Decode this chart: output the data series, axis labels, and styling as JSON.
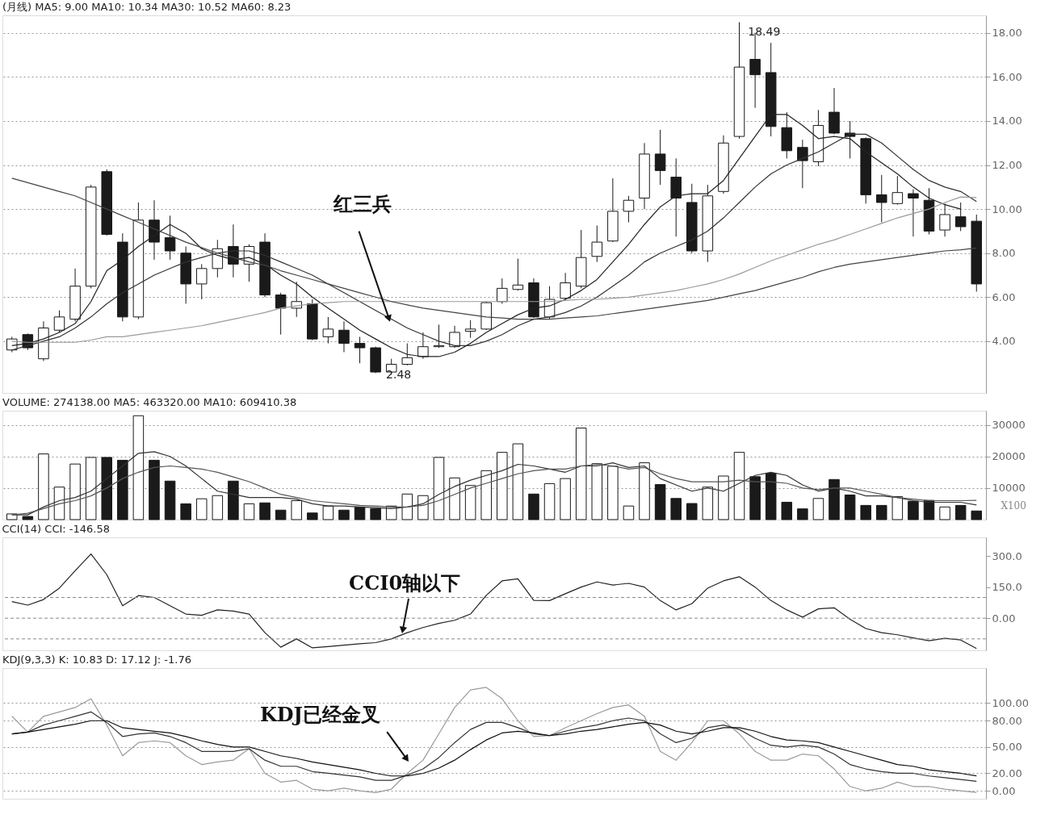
{
  "chart_data": [
    {
      "type": "candlestick",
      "title": "(月线) MA5: 9.00 MA10: 10.34 MA30: 10.52 MA60: 8.23",
      "tick_labels": "y",
      "grid": "y",
      "categories": [
        null,
        null,
        null,
        null,
        null,
        null,
        null,
        null,
        null,
        null,
        null,
        null,
        null,
        null,
        null,
        null,
        null,
        null,
        null,
        null,
        null,
        null,
        null,
        null,
        null,
        null,
        null,
        null,
        null,
        null,
        null,
        null,
        null,
        null,
        null,
        null,
        null,
        null,
        null,
        null,
        null,
        null,
        null,
        null,
        null,
        null,
        null,
        null,
        null,
        null,
        null,
        null,
        null,
        null,
        null,
        null,
        null,
        null,
        null,
        null,
        null,
        null
      ],
      "ohlc": [
        [
          3.6,
          4.2,
          3.5,
          4.1
        ],
        [
          4.3,
          4.35,
          3.6,
          3.7
        ],
        [
          3.2,
          4.9,
          3.1,
          4.6
        ],
        [
          4.5,
          5.4,
          4.4,
          5.1
        ],
        [
          5.0,
          7.3,
          4.9,
          6.5
        ],
        [
          6.5,
          11.1,
          6.4,
          11.0
        ],
        [
          11.7,
          11.8,
          8.8,
          8.85
        ],
        [
          8.5,
          8.9,
          4.9,
          5.1
        ],
        [
          5.1,
          10.3,
          5.0,
          9.5
        ],
        [
          9.5,
          10.4,
          7.7,
          8.5
        ],
        [
          8.7,
          9.7,
          7.7,
          8.1
        ],
        [
          8.0,
          8.3,
          5.7,
          6.6
        ],
        [
          6.6,
          7.5,
          5.9,
          7.3
        ],
        [
          7.3,
          8.6,
          6.9,
          8.2
        ],
        [
          8.3,
          9.3,
          6.9,
          7.5
        ],
        [
          7.5,
          8.4,
          6.7,
          8.3
        ],
        [
          8.5,
          8.9,
          6.0,
          6.1
        ],
        [
          6.1,
          6.2,
          4.3,
          5.5
        ],
        [
          5.5,
          6.7,
          5.1,
          5.8
        ],
        [
          5.7,
          5.9,
          4.05,
          4.1
        ],
        [
          4.2,
          5.1,
          3.9,
          4.55
        ],
        [
          4.5,
          4.9,
          3.5,
          3.9
        ],
        [
          3.9,
          4.2,
          3.0,
          3.7
        ],
        [
          3.7,
          3.75,
          2.55,
          2.6
        ],
        [
          2.6,
          3.2,
          2.48,
          2.95
        ],
        [
          2.95,
          3.9,
          2.9,
          3.25
        ],
        [
          3.3,
          4.4,
          3.2,
          3.75
        ],
        [
          3.75,
          4.75,
          3.7,
          3.8
        ],
        [
          3.75,
          4.7,
          3.7,
          4.4
        ],
        [
          4.45,
          4.95,
          4.15,
          4.55
        ],
        [
          4.55,
          5.8,
          4.5,
          5.75
        ],
        [
          5.8,
          6.85,
          5.7,
          6.4
        ],
        [
          6.35,
          7.75,
          6.3,
          6.55
        ],
        [
          6.65,
          6.85,
          5.05,
          5.1
        ],
        [
          5.1,
          6.5,
          5.0,
          5.9
        ],
        [
          5.95,
          7.1,
          5.85,
          6.65
        ],
        [
          6.5,
          9.05,
          6.4,
          7.8
        ],
        [
          7.85,
          9.25,
          7.6,
          8.5
        ],
        [
          8.55,
          11.4,
          8.5,
          9.9
        ],
        [
          9.9,
          10.6,
          9.4,
          10.4
        ],
        [
          10.5,
          13.0,
          10.0,
          12.5
        ],
        [
          12.5,
          13.6,
          11.1,
          11.75
        ],
        [
          11.45,
          12.3,
          8.75,
          10.5
        ],
        [
          10.3,
          11.15,
          8.0,
          8.1
        ],
        [
          8.1,
          11.1,
          7.6,
          10.6
        ],
        [
          10.8,
          13.35,
          10.7,
          13.0
        ],
        [
          13.3,
          18.49,
          13.2,
          16.45
        ],
        [
          16.8,
          18.0,
          14.6,
          16.1
        ],
        [
          16.2,
          17.55,
          13.3,
          13.75
        ],
        [
          13.7,
          14.4,
          12.3,
          12.65
        ],
        [
          12.8,
          13.15,
          10.95,
          12.2
        ],
        [
          12.15,
          14.5,
          11.95,
          13.8
        ],
        [
          14.4,
          15.5,
          13.4,
          13.45
        ],
        [
          13.45,
          14.0,
          12.3,
          13.3
        ],
        [
          13.2,
          13.25,
          10.25,
          10.65
        ],
        [
          10.65,
          11.55,
          9.4,
          10.3
        ],
        [
          10.25,
          11.5,
          10.2,
          10.75
        ],
        [
          10.7,
          10.9,
          8.75,
          10.5
        ],
        [
          10.4,
          10.95,
          8.85,
          9.0
        ],
        [
          9.05,
          10.25,
          8.75,
          9.75
        ],
        [
          9.65,
          10.3,
          9.0,
          9.2
        ],
        [
          9.45,
          9.75,
          6.25,
          6.6
        ]
      ],
      "colors": [
        "#ffffff",
        "#1a1a1a",
        "#ffffff",
        "#ffffff",
        "#ffffff",
        "#ffffff",
        "#1a1a1a",
        "#1a1a1a",
        "#ffffff",
        "#1a1a1a",
        "#1a1a1a",
        "#1a1a1a",
        "#ffffff",
        "#ffffff",
        "#1a1a1a",
        "#ffffff",
        "#1a1a1a",
        "#1a1a1a",
        "#ffffff",
        "#1a1a1a",
        "#ffffff",
        "#1a1a1a",
        "#1a1a1a",
        "#1a1a1a",
        "#ffffff",
        "#ffffff",
        "#ffffff",
        "#ffffff",
        "#ffffff",
        "#ffffff",
        "#ffffff",
        "#ffffff",
        "#ffffff",
        "#1a1a1a",
        "#ffffff",
        "#ffffff",
        "#ffffff",
        "#ffffff",
        "#ffffff",
        "#ffffff",
        "#ffffff",
        "#1a1a1a",
        "#1a1a1a",
        "#1a1a1a",
        "#ffffff",
        "#ffffff",
        "#ffffff",
        "#1a1a1a",
        "#1a1a1a",
        "#1a1a1a",
        "#1a1a1a",
        "#ffffff",
        "#1a1a1a",
        "#1a1a1a",
        "#1a1a1a",
        "#1a1a1a",
        "#ffffff",
        "#1a1a1a",
        "#1a1a1a",
        "#ffffff",
        "#1a1a1a",
        "#1a1a1a"
      ],
      "series": [
        {
          "type": "line",
          "color": "#222222",
          "values": [
            3.8,
            3.9,
            4.1,
            4.4,
            4.8,
            5.8,
            7.2,
            7.7,
            8.3,
            8.8,
            9.3,
            8.9,
            8.2,
            7.9,
            7.7,
            7.8,
            7.5,
            7.0,
            6.6,
            6.0,
            5.5,
            5.0,
            4.5,
            4.1,
            3.7,
            3.4,
            3.3,
            3.3,
            3.5,
            3.9,
            4.4,
            4.8,
            5.2,
            5.5,
            5.6,
            5.9,
            6.3,
            6.8,
            7.6,
            8.4,
            9.3,
            10.1,
            10.6,
            10.7,
            10.7,
            11.3,
            12.3,
            13.3,
            14.3,
            14.3,
            13.8,
            13.2,
            13.3,
            13.2,
            12.6,
            12.1,
            11.6,
            11.0,
            10.5,
            10.2,
            10.0,
            null
          ]
        },
        {
          "type": "line",
          "color": "#333333",
          "values": [
            3.6,
            3.8,
            4.0,
            4.2,
            4.6,
            5.1,
            5.7,
            6.2,
            6.6,
            7.0,
            7.3,
            7.6,
            7.8,
            8.0,
            8.1,
            8.1,
            7.9,
            7.6,
            7.3,
            7.0,
            6.6,
            6.2,
            5.8,
            5.4,
            5.0,
            4.6,
            4.3,
            4.0,
            3.8,
            3.8,
            4.0,
            4.3,
            4.7,
            5.0,
            5.1,
            5.3,
            5.6,
            6.0,
            6.5,
            7.0,
            7.6,
            8.0,
            8.3,
            8.6,
            9.0,
            9.6,
            10.3,
            11.0,
            11.6,
            12.0,
            12.3,
            12.6,
            13.0,
            13.4,
            13.4,
            13.0,
            12.4,
            11.8,
            11.3,
            11.0,
            10.8,
            10.34
          ]
        },
        {
          "type": "line",
          "color": "#9a9a9a",
          "values": [
            4.0,
            3.95,
            3.95,
            3.95,
            3.95,
            4.05,
            4.2,
            4.2,
            4.3,
            4.4,
            4.5,
            4.6,
            4.7,
            4.85,
            5.0,
            5.15,
            5.3,
            5.5,
            5.6,
            5.7,
            5.75,
            5.8,
            5.8,
            5.8,
            5.8,
            5.8,
            5.8,
            5.8,
            5.8,
            5.8,
            5.8,
            5.8,
            5.8,
            5.8,
            5.8,
            5.85,
            5.9,
            5.9,
            5.95,
            6.0,
            6.1,
            6.2,
            6.3,
            6.45,
            6.6,
            6.8,
            7.05,
            7.35,
            7.65,
            7.9,
            8.15,
            8.4,
            8.6,
            8.85,
            9.1,
            9.35,
            9.6,
            9.8,
            10.0,
            10.3,
            10.55,
            10.52
          ]
        },
        {
          "type": "line",
          "color": "#444444",
          "values": [
            11.4,
            11.2,
            11.0,
            10.8,
            10.6,
            10.3,
            10.0,
            9.7,
            9.4,
            9.1,
            8.8,
            8.5,
            8.25,
            8.0,
            7.8,
            7.6,
            7.45,
            7.2,
            7.0,
            6.8,
            6.6,
            6.4,
            6.2,
            6.0,
            5.8,
            5.65,
            5.5,
            5.4,
            5.3,
            5.2,
            5.1,
            5.05,
            5.0,
            5.0,
            5.0,
            5.05,
            5.1,
            5.15,
            5.25,
            5.35,
            5.45,
            5.55,
            5.65,
            5.75,
            5.85,
            6.0,
            6.15,
            6.3,
            6.5,
            6.7,
            6.9,
            7.15,
            7.35,
            7.5,
            7.6,
            7.7,
            7.8,
            7.9,
            8.0,
            8.1,
            8.15,
            8.23
          ]
        }
      ],
      "ylim": [
        1.65,
        18.8
      ],
      "yticks": [
        {
          "value": 4,
          "label": "4.00"
        },
        {
          "value": 6,
          "label": "6.00"
        },
        {
          "value": 8,
          "label": "8.00"
        },
        {
          "value": 10,
          "label": "10.00"
        },
        {
          "value": 12,
          "label": "12.00"
        },
        {
          "value": 14,
          "label": "14.00"
        },
        {
          "value": 16,
          "label": "16.00"
        },
        {
          "value": 18,
          "label": "18.00"
        }
      ],
      "annotations": [
        "红三兵",
        "18.49",
        "2.48"
      ]
    },
    {
      "type": "bar",
      "title": "VOLUME: 274138.00 MA5: 463320.00 MA10: 609410.38",
      "tick_labels": "y",
      "grid": "y",
      "categories": [
        null,
        null,
        null,
        null,
        null,
        null,
        null,
        null,
        null,
        null,
        null,
        null,
        null,
        null,
        null,
        null,
        null,
        null,
        null,
        null,
        null,
        null,
        null,
        null,
        null,
        null,
        null,
        null,
        null,
        null,
        null,
        null,
        null,
        null,
        null,
        null,
        null,
        null,
        null,
        null,
        null,
        null,
        null,
        null,
        null,
        null,
        null,
        null,
        null,
        null,
        null,
        null,
        null,
        null,
        null,
        null,
        null,
        null,
        null,
        null,
        null,
        null
      ],
      "values": [
        1800,
        1000,
        20800,
        10300,
        17600,
        19700,
        19700,
        18800,
        32900,
        18800,
        12200,
        5000,
        6600,
        7600,
        12200,
        5000,
        5300,
        3000,
        6000,
        2100,
        4300,
        3000,
        4000,
        3500,
        4300,
        8100,
        7600,
        19700,
        13200,
        10800,
        15500,
        21300,
        24000,
        8100,
        11400,
        13000,
        29000,
        17700,
        16900,
        4300,
        18000,
        11100,
        6700,
        5100,
        10300,
        13800,
        21300,
        13600,
        14700,
        5500,
        3400,
        6700,
        12700,
        7800,
        4500,
        4500,
        7300,
        5800,
        6100,
        4000,
        4500,
        2741
      ],
      "colors": [
        "#ffffff",
        "#1a1a1a",
        "#ffffff",
        "#ffffff",
        "#ffffff",
        "#ffffff",
        "#1a1a1a",
        "#1a1a1a",
        "#ffffff",
        "#1a1a1a",
        "#1a1a1a",
        "#1a1a1a",
        "#ffffff",
        "#ffffff",
        "#1a1a1a",
        "#ffffff",
        "#1a1a1a",
        "#1a1a1a",
        "#ffffff",
        "#1a1a1a",
        "#ffffff",
        "#1a1a1a",
        "#1a1a1a",
        "#1a1a1a",
        "#ffffff",
        "#ffffff",
        "#ffffff",
        "#ffffff",
        "#ffffff",
        "#ffffff",
        "#ffffff",
        "#ffffff",
        "#ffffff",
        "#1a1a1a",
        "#ffffff",
        "#ffffff",
        "#ffffff",
        "#ffffff",
        "#ffffff",
        "#ffffff",
        "#ffffff",
        "#1a1a1a",
        "#1a1a1a",
        "#1a1a1a",
        "#ffffff",
        "#ffffff",
        "#ffffff",
        "#1a1a1a",
        "#1a1a1a",
        "#1a1a1a",
        "#1a1a1a",
        "#ffffff",
        "#1a1a1a",
        "#1a1a1a",
        "#1a1a1a",
        "#1a1a1a",
        "#ffffff",
        "#1a1a1a",
        "#1a1a1a",
        "#ffffff",
        "#1a1a1a",
        "#1a1a1a"
      ],
      "series": [
        {
          "type": "line",
          "color": "#333333",
          "values": [
            1500,
            1500,
            4000,
            6000,
            7000,
            9000,
            13000,
            17000,
            21000,
            21500,
            20000,
            17000,
            13000,
            9000,
            8000,
            7000,
            7000,
            7000,
            6500,
            5000,
            4300,
            4300,
            4000,
            3800,
            3500,
            4000,
            5000,
            8000,
            10500,
            12500,
            14000,
            15500,
            17500,
            17000,
            16000,
            15000,
            17000,
            17000,
            18000,
            16500,
            17000,
            13000,
            11000,
            9000,
            10000,
            9000,
            11500,
            14000,
            15000,
            14000,
            11000,
            9000,
            10000,
            9000,
            7500,
            7500,
            7000,
            6000,
            5500,
            5500,
            5500,
            4633
          ]
        },
        {
          "type": "line",
          "color": "#555555",
          "values": [
            1500,
            2000,
            3500,
            5000,
            6000,
            7500,
            10000,
            13000,
            15000,
            16500,
            17000,
            16500,
            16000,
            15000,
            13500,
            12000,
            10000,
            8000,
            7000,
            6000,
            5500,
            5000,
            4500,
            4300,
            4000,
            4000,
            4500,
            6000,
            8000,
            10000,
            11500,
            13000,
            14500,
            15500,
            16000,
            16000,
            17000,
            17500,
            17000,
            16000,
            16500,
            14500,
            13000,
            12000,
            12000,
            12000,
            12500,
            12000,
            12000,
            11500,
            10000,
            9500,
            10000,
            10000,
            9000,
            8000,
            7000,
            6500,
            6000,
            6000,
            6000,
            6094
          ]
        }
      ],
      "ylim": [
        0,
        34500
      ],
      "yticks": [
        10000,
        20000,
        30000
      ],
      "annotations": [
        "X100"
      ]
    },
    {
      "type": "line",
      "title": "CCI(14) CCI: -146.58",
      "tick_labels": "y",
      "color": "#222222",
      "categories": [
        null,
        null,
        null,
        null,
        null,
        null,
        null,
        null,
        null,
        null,
        null,
        null,
        null,
        null,
        null,
        null,
        null,
        null,
        null,
        null,
        null,
        null,
        null,
        null,
        null,
        null,
        null,
        null,
        null,
        null,
        null,
        null,
        null,
        null,
        null,
        null,
        null,
        null,
        null,
        null,
        null,
        null,
        null,
        null,
        null,
        null,
        null,
        null,
        null,
        null,
        null,
        null,
        null,
        null,
        null,
        null,
        null,
        null,
        null,
        null,
        null,
        null
      ],
      "values": [
        80,
        63,
        90,
        145,
        229,
        310,
        210,
        60,
        109,
        100,
        60,
        20,
        14,
        40,
        34,
        20,
        -70,
        -140,
        -100,
        -143,
        -137,
        -130,
        -123,
        -118,
        -100,
        -70,
        -45,
        -25,
        -10,
        20,
        110,
        180,
        190,
        86,
        85,
        118,
        150,
        175,
        160,
        168,
        150,
        85,
        40,
        70,
        145,
        180,
        200,
        150,
        85,
        40,
        5,
        45,
        50,
        -5,
        -50,
        -70,
        -80,
        -95,
        -109,
        -97,
        -105,
        -146.58
      ],
      "ylim": [
        -155,
        390
      ],
      "yticks": [
        {
          "value": 0,
          "label": "0.00"
        },
        {
          "value": 150,
          "label": "150.0"
        },
        {
          "value": 300,
          "label": "300.0"
        }
      ],
      "ref_lines": [
        {
          "axis": "y",
          "value": 100,
          "color": "#888888",
          "line_style": "dashed"
        },
        {
          "axis": "y",
          "value": 0,
          "color": "#888888",
          "line_style": "dashed"
        },
        {
          "axis": "y",
          "value": -100,
          "color": "#888888",
          "line_style": "dashed"
        }
      ],
      "annotations": [
        "CCI0轴以下"
      ]
    },
    {
      "type": "line",
      "title": "KDJ(9,3,3) K: 10.83 D: 17.12 J: -1.76",
      "tick_labels": "y",
      "grid": "y",
      "categories": [
        null,
        null,
        null,
        null,
        null,
        null,
        null,
        null,
        null,
        null,
        null,
        null,
        null,
        null,
        null,
        null,
        null,
        null,
        null,
        null,
        null,
        null,
        null,
        null,
        null,
        null,
        null,
        null,
        null,
        null,
        null,
        null,
        null,
        null,
        null,
        null,
        null,
        null,
        null,
        null,
        null,
        null,
        null,
        null,
        null,
        null,
        null,
        null,
        null,
        null,
        null,
        null,
        null,
        null,
        null,
        null,
        null,
        null,
        null,
        null,
        null,
        null
      ],
      "series": [
        {
          "type": "line",
          "color": "#9a9a9a",
          "values": [
            85,
            67,
            85,
            90,
            95,
            105,
            75,
            40,
            55,
            57,
            55,
            40,
            30,
            33,
            35,
            48,
            20,
            10,
            12,
            2,
            0,
            3,
            0,
            -2,
            2,
            20,
            35,
            65,
            95,
            115,
            118,
            105,
            80,
            62,
            63,
            72,
            80,
            88,
            95,
            98,
            85,
            45,
            35,
            55,
            80,
            80,
            65,
            45,
            35,
            35,
            42,
            40,
            25,
            5,
            0,
            3,
            10,
            5,
            5,
            2,
            0,
            -1.76
          ]
        },
        {
          "type": "line",
          "color": "#333333",
          "values": [
            65,
            67,
            75,
            80,
            85,
            90,
            78,
            62,
            65,
            66,
            62,
            55,
            45,
            45,
            45,
            48,
            35,
            28,
            28,
            22,
            20,
            18,
            16,
            12,
            12,
            18,
            25,
            38,
            55,
            70,
            78,
            78,
            72,
            65,
            63,
            68,
            72,
            75,
            80,
            83,
            80,
            65,
            55,
            60,
            72,
            75,
            70,
            60,
            52,
            50,
            52,
            50,
            42,
            30,
            25,
            22,
            20,
            20,
            17,
            15,
            13,
            10.83
          ]
        },
        {
          "type": "line",
          "color": "#111111",
          "values": [
            65,
            67,
            70,
            73,
            76,
            80,
            80,
            72,
            70,
            68,
            66,
            62,
            57,
            53,
            50,
            50,
            45,
            40,
            37,
            33,
            30,
            27,
            24,
            20,
            17,
            17,
            20,
            26,
            35,
            47,
            58,
            66,
            68,
            66,
            63,
            65,
            68,
            70,
            73,
            76,
            78,
            75,
            68,
            65,
            68,
            72,
            72,
            68,
            62,
            58,
            57,
            55,
            50,
            45,
            40,
            35,
            30,
            28,
            24,
            22,
            20,
            17.12
          ]
        }
      ],
      "ylim": [
        -9,
        140
      ],
      "yticks": [
        {
          "value": 0,
          "label": "0.00"
        },
        {
          "value": 20,
          "label": "20.00"
        },
        {
          "value": 50,
          "label": "50.00"
        },
        {
          "value": 80,
          "label": "80.00"
        },
        {
          "value": 100,
          "label": "100.00"
        }
      ],
      "annotations": [
        "KDJ已经金叉"
      ]
    }
  ]
}
